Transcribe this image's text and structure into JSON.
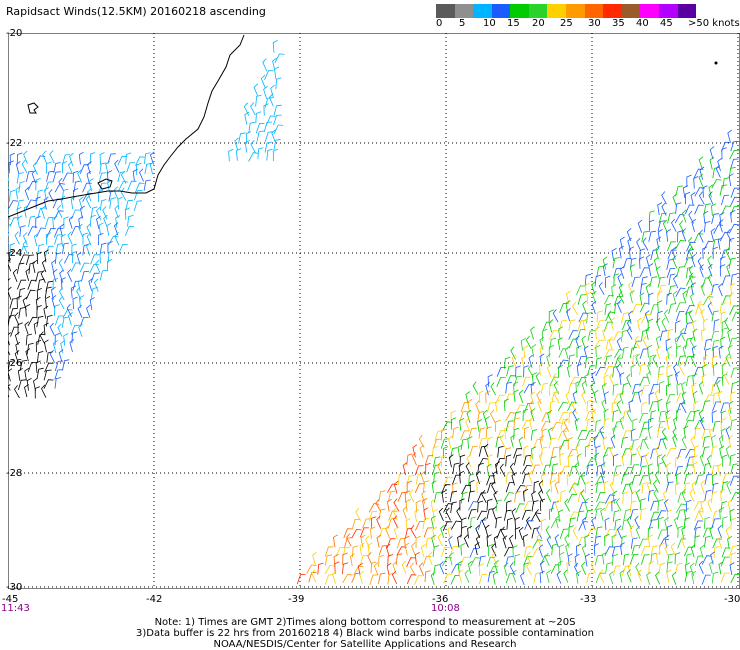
{
  "title": "Rapidsact Winds(12.5KM) 20160218 ascending",
  "legend": {
    "colors": [
      "#5a5a5a",
      "#8f8f8f",
      "#00b4ff",
      "#1a5cff",
      "#00cc00",
      "#2ad22a",
      "#ffd000",
      "#ff9a00",
      "#ff6600",
      "#ff2a00",
      "#9b5a2a",
      "#ff00ff",
      "#b400ff",
      "#5a00a0"
    ],
    "labels": [
      "0",
      "5",
      "10",
      "15",
      "20",
      "25",
      "30",
      "35",
      "40",
      "45",
      ">50 knots"
    ]
  },
  "y_axis_labels": [
    "-20",
    "-22",
    "-24",
    "-26",
    "-28",
    "-30"
  ],
  "x_axis_labels": [
    "-45",
    "-42",
    "-39",
    "-36",
    "-33",
    "-30"
  ],
  "time_labels": [
    "11:43",
    "10:08"
  ],
  "notes": [
    "Note: 1) Times are GMT 2)Times along bottom correspond to measurement at ~20S",
    "3)Data buffer is 22 hrs from 20160218 4) Black wind barbs indicate possible contamination",
    "NOAA/NESDIS/Center for Satellite Applications and Research"
  ]
}
